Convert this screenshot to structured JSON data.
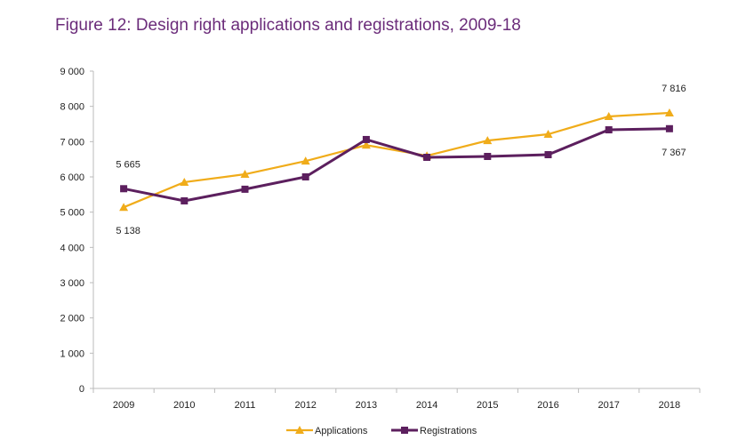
{
  "chart_data": {
    "type": "line",
    "title": "Figure 12: Design right applications and registrations, 2009-18",
    "categories": [
      "2009",
      "2010",
      "2011",
      "2012",
      "2013",
      "2014",
      "2015",
      "2016",
      "2017",
      "2018"
    ],
    "ylim": [
      0,
      9000
    ],
    "yticks": [
      0,
      1000,
      2000,
      3000,
      4000,
      5000,
      6000,
      7000,
      8000,
      9000
    ],
    "ytick_labels": [
      "0",
      "1 000",
      "2 000",
      "3 000",
      "4 000",
      "5 000",
      "6 000",
      "7 000",
      "8 000",
      "9 000"
    ],
    "grid": false,
    "legend": "bottom",
    "series": [
      {
        "name": "Applications",
        "color": "#f0ac1a",
        "marker": "triangle",
        "values": [
          5138,
          5850,
          6075,
          6450,
          6900,
          6600,
          7030,
          7210,
          7715,
          7816
        ]
      },
      {
        "name": "Registrations",
        "color": "#5c1f5e",
        "marker": "square",
        "values": [
          5665,
          5320,
          5650,
          6000,
          7060,
          6555,
          6580,
          6630,
          7335,
          7367
        ]
      }
    ],
    "annotations": [
      {
        "text": "5 665",
        "series": 1,
        "index": 0,
        "position": "above"
      },
      {
        "text": "5 138",
        "series": 0,
        "index": 0,
        "position": "below"
      },
      {
        "text": "7 816",
        "series": 0,
        "index": 9,
        "position": "above"
      },
      {
        "text": "7 367",
        "series": 1,
        "index": 9,
        "position": "below"
      }
    ]
  }
}
